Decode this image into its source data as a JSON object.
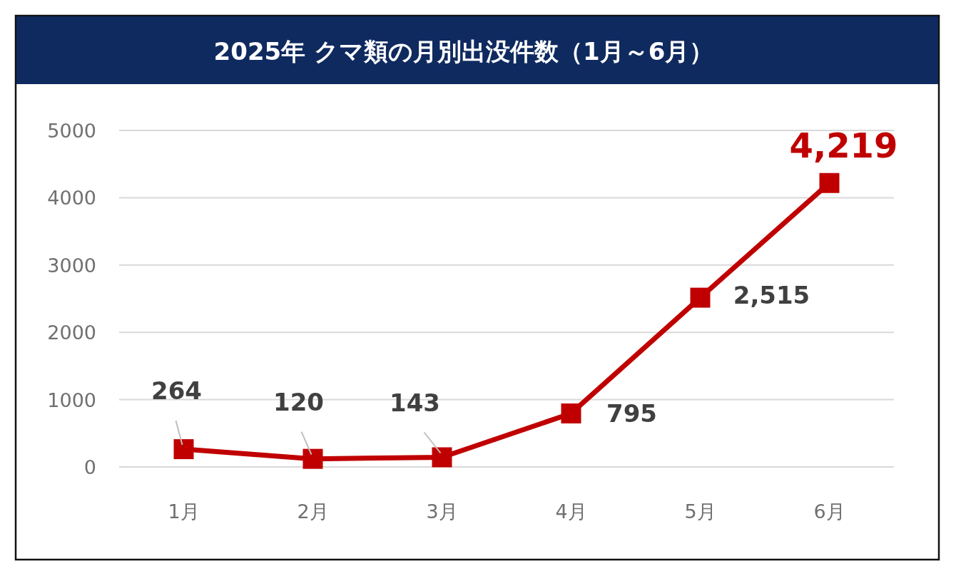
{
  "chart_data": {
    "type": "line",
    "title": "2025年 クマ類の月別出没件数（1月～6月）",
    "categories": [
      "1月",
      "2月",
      "3月",
      "4月",
      "5月",
      "6月"
    ],
    "series": [
      {
        "color": "#c00000",
        "values": [
          264,
          120,
          143,
          795,
          2515,
          4219
        ],
        "value_labels": [
          "264",
          "120",
          "143",
          "795",
          "2,515",
          "4,219"
        ]
      }
    ],
    "ylim": [
      0,
      5000
    ],
    "yticks": [
      0,
      1000,
      2000,
      3000,
      4000,
      5000
    ],
    "grid": "y",
    "marker": "square",
    "line_style": "solid"
  }
}
